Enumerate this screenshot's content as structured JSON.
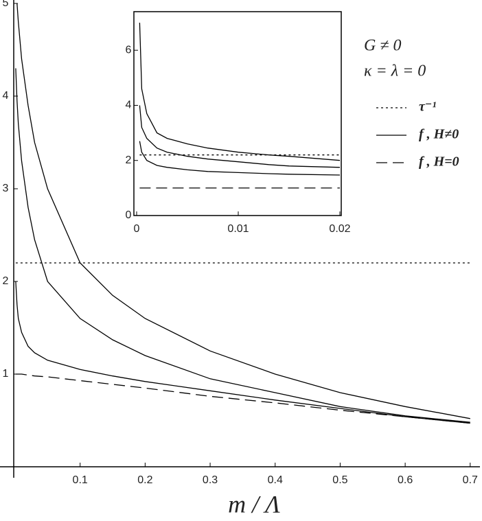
{
  "chart_data": [
    {
      "type": "line",
      "x_label": "m / Λ",
      "annotations": [
        "G ≠ 0",
        "κ = λ = 0"
      ],
      "x": [
        0.001,
        0.003,
        0.005,
        0.01,
        0.02,
        0.03,
        0.05,
        0.1,
        0.15,
        0.2,
        0.3,
        0.4,
        0.5,
        0.6,
        0.7
      ],
      "series": [
        {
          "name": "τ⁻¹",
          "color": "#000000",
          "dash": "dotted",
          "values": [
            2.2,
            2.2,
            2.2,
            2.2,
            2.2,
            2.2,
            2.2,
            2.2,
            2.2,
            2.2,
            2.2,
            2.2,
            2.2,
            2.2,
            2.2
          ]
        },
        {
          "name": "f , H≠0",
          "color": "#000000",
          "dash": "solid",
          "values": [
            null,
            5.0,
            4.8,
            4.4,
            3.9,
            3.5,
            3.0,
            2.2,
            1.85,
            1.6,
            1.25,
            1.0,
            0.8,
            0.65,
            0.52
          ]
        },
        {
          "color": "#000000",
          "dash": "solid",
          "values": [
            4.3,
            3.95,
            3.7,
            3.3,
            2.8,
            2.45,
            2.0,
            1.6,
            1.37,
            1.2,
            0.95,
            0.8,
            0.65,
            0.55,
            0.48
          ]
        },
        {
          "color": "#000000",
          "dash": "solid",
          "values": [
            2.0,
            1.75,
            1.6,
            1.45,
            1.3,
            1.23,
            1.15,
            1.05,
            0.98,
            0.92,
            0.82,
            0.72,
            0.63,
            0.54,
            0.47
          ]
        },
        {
          "name": "f , H=0",
          "color": "#000000",
          "dash": "dashed",
          "values": [
            1.0,
            1.0,
            1.0,
            1.0,
            0.99,
            0.98,
            0.97,
            0.93,
            0.89,
            0.85,
            0.76,
            0.69,
            0.61,
            0.54,
            0.47
          ]
        }
      ],
      "xlim": [
        0,
        0.715
      ],
      "ylim": [
        0,
        5
      ],
      "xticks": [
        0.1,
        0.2,
        0.3,
        0.4,
        0.5,
        0.6,
        0.7
      ],
      "yticks": [
        1,
        2,
        3,
        4,
        5
      ]
    },
    {
      "type": "line",
      "frame": true,
      "x": [
        0.0003,
        0.0005,
        0.001,
        0.002,
        0.003,
        0.005,
        0.007,
        0.01,
        0.013,
        0.015,
        0.02
      ],
      "series": [
        {
          "color": "#000000",
          "dash": "dotted",
          "values": [
            2.2,
            2.2,
            2.2,
            2.2,
            2.2,
            2.2,
            2.2,
            2.2,
            2.2,
            2.2,
            2.2
          ]
        },
        {
          "color": "#000000",
          "dash": "solid",
          "values": [
            7.0,
            4.6,
            3.7,
            3.0,
            2.8,
            2.6,
            2.45,
            2.3,
            2.2,
            2.15,
            2.0
          ]
        },
        {
          "color": "#000000",
          "dash": "solid",
          "values": [
            4.0,
            3.2,
            2.8,
            2.45,
            2.3,
            2.15,
            2.05,
            1.95,
            1.85,
            1.8,
            1.75
          ]
        },
        {
          "color": "#000000",
          "dash": "solid",
          "values": [
            2.7,
            2.3,
            2.0,
            1.82,
            1.75,
            1.66,
            1.6,
            1.56,
            1.52,
            1.5,
            1.47
          ]
        },
        {
          "color": "#000000",
          "dash": "dashed",
          "values": [
            1.0,
            1.0,
            1.0,
            1.0,
            1.0,
            1.0,
            1.0,
            1.0,
            1.0,
            1.0,
            1.0
          ]
        }
      ],
      "xlim": [
        0,
        0.02
      ],
      "ylim": [
        0,
        7.4
      ],
      "xticks": [
        0,
        0.01,
        0.02
      ],
      "yticks": [
        0,
        2,
        4,
        6
      ]
    }
  ]
}
